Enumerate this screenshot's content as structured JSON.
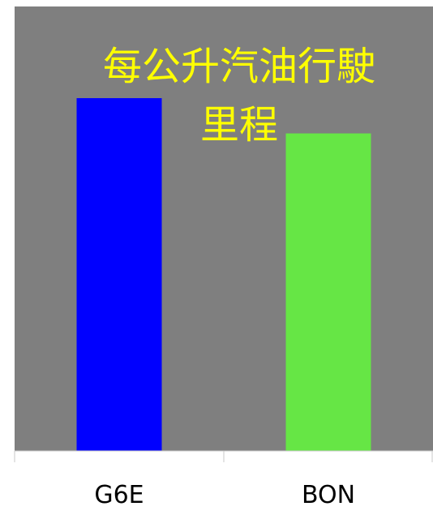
{
  "chart_data": {
    "type": "bar",
    "title": "每公升汽油行駛里程",
    "title_lines": [
      "每公升汽油行駛",
      "里程"
    ],
    "categories": [
      "G6E",
      "BON"
    ],
    "values": [
      100,
      90
    ],
    "bar_colors": [
      "#0000ff",
      "#66e645"
    ],
    "ylim": [
      0,
      100
    ],
    "xlabel": "",
    "ylabel": "",
    "grid": false,
    "legend": "none"
  },
  "colors": {
    "plot_background": "#7f7f7f",
    "title": "#ffff00",
    "axis": "#c8c8c8",
    "tick_label": "#000000"
  }
}
